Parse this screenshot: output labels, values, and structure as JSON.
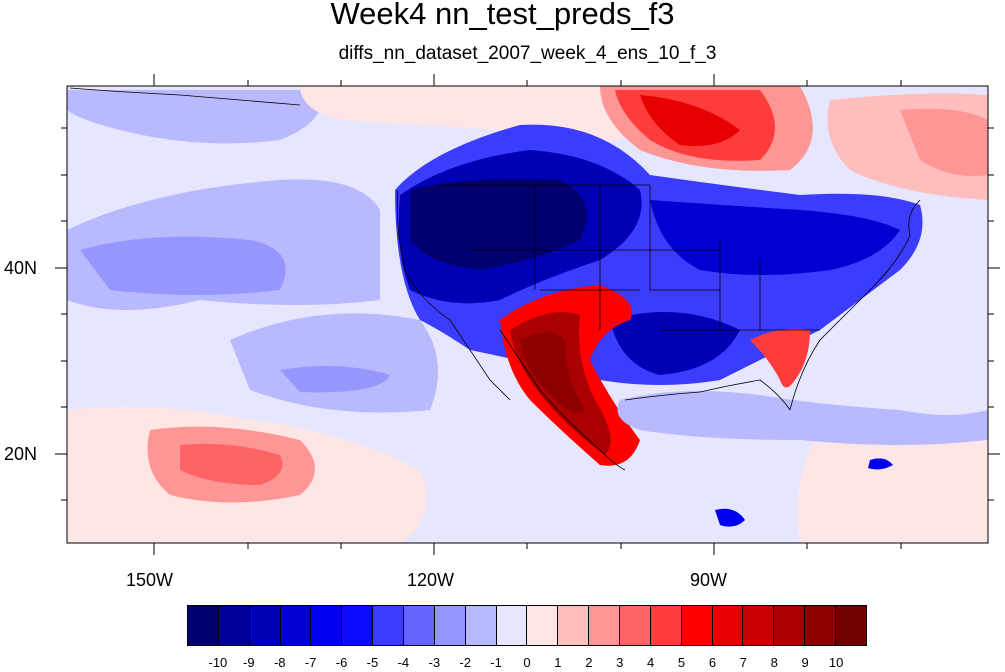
{
  "title": "Week4 nn_test_preds_f3",
  "subtitle": "diffs_nn_dataset_2007_week_4_ens_10_f_3",
  "axes": {
    "lon_labels": [
      "150W",
      "120W",
      "90W"
    ],
    "lat_labels": [
      "40N",
      "20N"
    ]
  },
  "colorbar": {
    "labels": [
      "-10",
      "-9",
      "-8",
      "-7",
      "-6",
      "-5",
      "-4",
      "-3",
      "-2",
      "-1",
      "0",
      "1",
      "2",
      "3",
      "4",
      "5",
      "6",
      "7",
      "8",
      "9",
      "10"
    ],
    "colors": [
      "#00006e",
      "#000096",
      "#0000b4",
      "#0000d2",
      "#0000f0",
      "#0a0aff",
      "#3c3cff",
      "#6464ff",
      "#9696ff",
      "#b9b9ff",
      "#e6e6ff",
      "#ffe6e6",
      "#ffbebe",
      "#ff9696",
      "#ff6464",
      "#ff3c3c",
      "#ff0000",
      "#e60000",
      "#c80000",
      "#aa0000",
      "#8c0000",
      "#6e0000"
    ]
  }
}
